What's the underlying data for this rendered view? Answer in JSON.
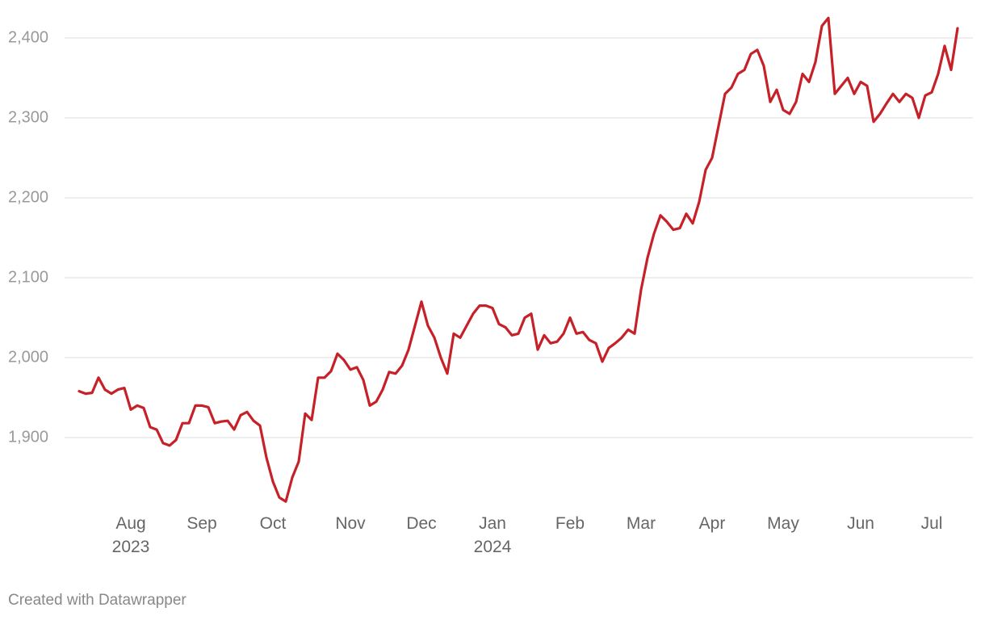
{
  "chart_data": {
    "type": "line",
    "categories": [
      null,
      null,
      null,
      null,
      null,
      null,
      null,
      null,
      "Aug\n2023",
      null,
      null,
      null,
      null,
      null,
      null,
      null,
      null,
      null,
      null,
      "Sep",
      null,
      null,
      null,
      null,
      null,
      null,
      null,
      null,
      null,
      null,
      "Oct",
      null,
      null,
      null,
      null,
      null,
      null,
      null,
      null,
      null,
      null,
      null,
      "Nov",
      null,
      null,
      null,
      null,
      null,
      null,
      null,
      null,
      null,
      null,
      "Dec",
      null,
      null,
      null,
      null,
      null,
      null,
      null,
      null,
      null,
      null,
      "Jan\n2024",
      null,
      null,
      null,
      null,
      null,
      null,
      null,
      null,
      null,
      null,
      null,
      "Feb",
      null,
      null,
      null,
      null,
      null,
      null,
      null,
      null,
      null,
      null,
      "Mar",
      null,
      null,
      null,
      null,
      null,
      null,
      null,
      null,
      null,
      null,
      "Apr",
      null,
      null,
      null,
      null,
      null,
      null,
      null,
      null,
      null,
      null,
      "May",
      null,
      null,
      null,
      null,
      null,
      null,
      null,
      null,
      null,
      null,
      null,
      "Jun",
      null,
      null,
      null,
      null,
      null,
      null,
      null,
      null,
      null,
      null,
      "Jul",
      null,
      null,
      null,
      null
    ],
    "values": [
      1958,
      1955,
      1956,
      1975,
      1960,
      1955,
      1960,
      1962,
      1935,
      1940,
      1937,
      1913,
      1910,
      1893,
      1890,
      1897,
      1918,
      1918,
      1940,
      1940,
      1938,
      1918,
      1920,
      1921,
      1910,
      1928,
      1932,
      1921,
      1915,
      1875,
      1845,
      1825,
      1820,
      1850,
      1870,
      1930,
      1922,
      1975,
      1975,
      1983,
      2005,
      1997,
      1985,
      1988,
      1972,
      1940,
      1945,
      1960,
      1982,
      1980,
      1990,
      2010,
      2040,
      2070,
      2040,
      2025,
      2000,
      1980,
      2030,
      2025,
      2040,
      2055,
      2065,
      2065,
      2062,
      2042,
      2038,
      2028,
      2030,
      2050,
      2055,
      2010,
      2028,
      2018,
      2020,
      2030,
      2050,
      2030,
      2032,
      2022,
      2018,
      1995,
      2012,
      2018,
      2025,
      2035,
      2030,
      2085,
      2125,
      2155,
      2178,
      2170,
      2160,
      2162,
      2180,
      2168,
      2195,
      2235,
      2250,
      2290,
      2330,
      2338,
      2355,
      2360,
      2380,
      2385,
      2365,
      2320,
      2335,
      2310,
      2305,
      2320,
      2355,
      2345,
      2370,
      2415,
      2425,
      2330,
      2340,
      2350,
      2330,
      2345,
      2340,
      2295,
      2305,
      2318,
      2330,
      2320,
      2330,
      2325,
      2300,
      2328,
      2332,
      2355,
      2390,
      2360,
      2412
    ],
    "color": "#c62128",
    "ylim": [
      1820,
      2430
    ],
    "yticks": [
      {
        "value": 1900,
        "label": "1,900"
      },
      {
        "value": 2000,
        "label": "2,000"
      },
      {
        "value": 2100,
        "label": "2,100"
      },
      {
        "value": 2200,
        "label": "2,200"
      },
      {
        "value": 2300,
        "label": "2,300"
      },
      {
        "value": 2400,
        "label": "2,400"
      }
    ],
    "grid": true,
    "credit": "Created with Datawrapper"
  }
}
